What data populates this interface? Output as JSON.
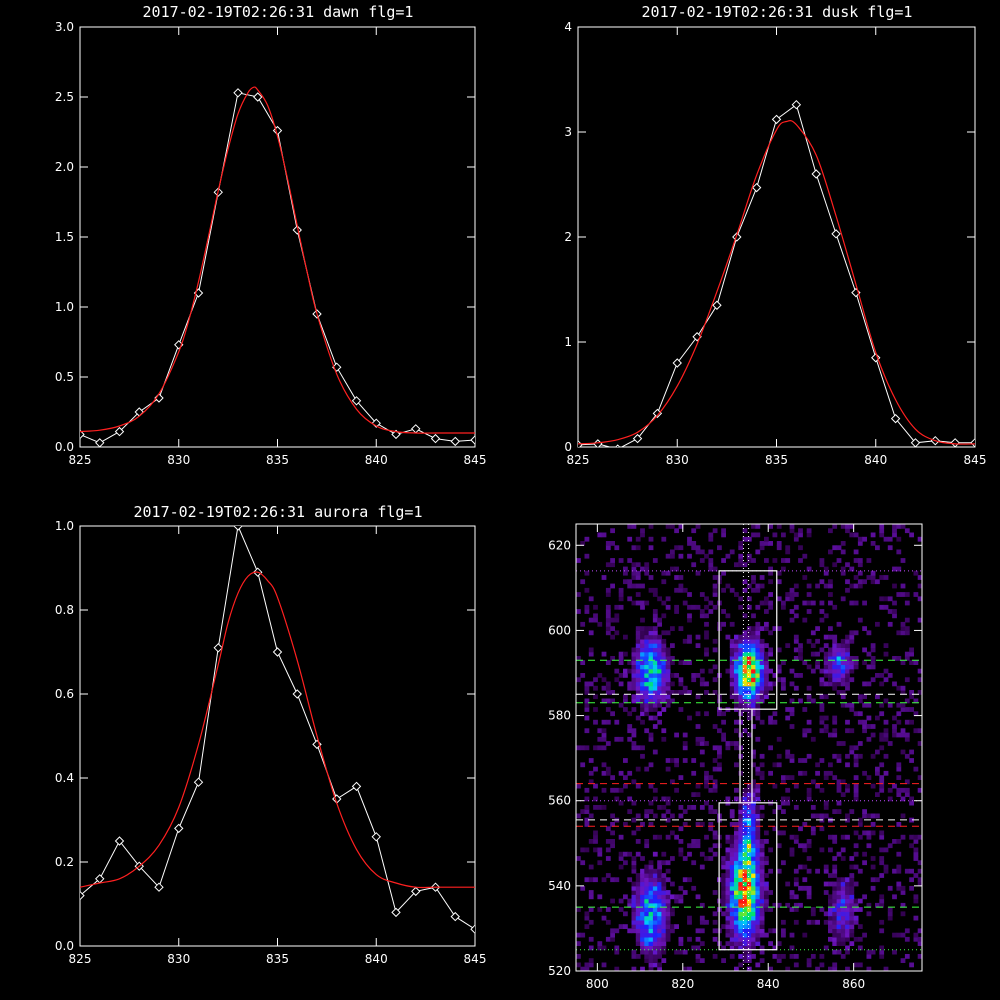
{
  "figure": {
    "background": "#000000",
    "axis_color": "#ffffff",
    "model_color": "#ff2020",
    "data_color": "#ffffff"
  },
  "chart_data": [
    {
      "type": "line",
      "title": "2017-02-19T02:26:31 dawn flg=1",
      "xlabel": "",
      "ylabel": "",
      "xlim": [
        825,
        845
      ],
      "ylim": [
        0,
        3.0
      ],
      "xticks": [
        "825",
        "830",
        "835",
        "840",
        "845"
      ],
      "yticks": [
        "0.0",
        "0.5",
        "1.0",
        "1.5",
        "2.0",
        "2.5",
        "3.0"
      ],
      "xtick_values": [
        825,
        830,
        835,
        840,
        845
      ],
      "ytick_values": [
        0,
        0.5,
        1.0,
        1.5,
        2.0,
        2.5,
        3.0
      ],
      "series": [
        {
          "role": "data",
          "marker": "diamond",
          "color": "#ffffff",
          "x": [
            825,
            826,
            827,
            828,
            829,
            830,
            831,
            832,
            833,
            834,
            835,
            836,
            837,
            838,
            839,
            840,
            841,
            842,
            843,
            844,
            845
          ],
          "y": [
            0.09,
            0.03,
            0.11,
            0.25,
            0.35,
            0.73,
            1.1,
            1.82,
            2.53,
            2.5,
            2.26,
            1.55,
            0.95,
            0.57,
            0.33,
            0.17,
            0.09,
            0.13,
            0.06,
            0.04,
            0.05
          ]
        },
        {
          "role": "fit",
          "color": "#ff2020",
          "x": [
            825,
            826,
            827,
            828,
            829,
            830,
            830.5,
            831,
            831.5,
            832,
            832.5,
            833,
            833.5,
            833.8,
            834,
            834.5,
            835,
            835.5,
            836,
            836.5,
            837,
            838,
            839,
            840,
            841,
            842,
            843,
            844,
            845
          ],
          "y": [
            0.11,
            0.12,
            0.15,
            0.22,
            0.38,
            0.68,
            0.9,
            1.18,
            1.5,
            1.83,
            2.13,
            2.38,
            2.53,
            2.57,
            2.55,
            2.44,
            2.22,
            1.92,
            1.58,
            1.25,
            0.95,
            0.52,
            0.27,
            0.15,
            0.11,
            0.1,
            0.1,
            0.1,
            0.1
          ]
        }
      ]
    },
    {
      "type": "line",
      "title": "2017-02-19T02:26:31 dusk flg=1",
      "xlabel": "",
      "ylabel": "",
      "xlim": [
        825,
        845
      ],
      "ylim": [
        0,
        4
      ],
      "xticks": [
        "825",
        "830",
        "835",
        "840",
        "845"
      ],
      "yticks": [
        "0",
        "1",
        "2",
        "3",
        "4"
      ],
      "xtick_values": [
        825,
        830,
        835,
        840,
        845
      ],
      "ytick_values": [
        0,
        1,
        2,
        3,
        4
      ],
      "series": [
        {
          "role": "data",
          "marker": "diamond",
          "color": "#ffffff",
          "x": [
            825,
            826,
            827,
            828,
            829,
            830,
            831,
            832,
            833,
            834,
            835,
            836,
            837,
            838,
            839,
            840,
            841,
            842,
            843,
            844,
            845
          ],
          "y": [
            0.02,
            0.03,
            -0.02,
            0.08,
            0.32,
            0.8,
            1.05,
            1.35,
            2.0,
            2.47,
            3.12,
            3.26,
            2.6,
            2.03,
            1.47,
            0.85,
            0.27,
            0.04,
            0.06,
            0.04,
            0.04
          ]
        },
        {
          "role": "fit",
          "color": "#ff2020",
          "x": [
            825,
            826,
            827,
            828,
            829,
            830,
            831,
            832,
            833,
            834,
            835,
            835.5,
            836,
            837,
            838,
            839,
            840,
            841,
            842,
            843,
            844,
            845
          ],
          "y": [
            0.03,
            0.04,
            0.07,
            0.14,
            0.3,
            0.58,
            0.98,
            1.48,
            2.02,
            2.59,
            3.02,
            3.1,
            3.07,
            2.78,
            2.2,
            1.55,
            0.9,
            0.45,
            0.17,
            0.06,
            0.03,
            0.03
          ]
        }
      ]
    },
    {
      "type": "line",
      "title": "2017-02-19T02:26:31 aurora flg=1",
      "xlabel": "",
      "ylabel": "",
      "xlim": [
        825,
        845
      ],
      "ylim": [
        0,
        1.0
      ],
      "xticks": [
        "825",
        "830",
        "835",
        "840",
        "845"
      ],
      "yticks": [
        "0.0",
        "0.2",
        "0.4",
        "0.6",
        "0.8",
        "1.0"
      ],
      "xtick_values": [
        825,
        830,
        835,
        840,
        845
      ],
      "ytick_values": [
        0,
        0.2,
        0.4,
        0.6,
        0.8,
        1.0
      ],
      "series": [
        {
          "role": "data",
          "marker": "diamond",
          "color": "#ffffff",
          "x": [
            825,
            826,
            827,
            828,
            829,
            830,
            831,
            832,
            833,
            834,
            835,
            836,
            837,
            838,
            839,
            840,
            841,
            842,
            843,
            844,
            845
          ],
          "y": [
            0.12,
            0.16,
            0.25,
            0.19,
            0.14,
            0.28,
            0.39,
            0.71,
            1.0,
            0.89,
            0.7,
            0.6,
            0.48,
            0.35,
            0.38,
            0.26,
            0.08,
            0.13,
            0.14,
            0.07,
            0.04
          ]
        },
        {
          "role": "fit",
          "color": "#ff2020",
          "x": [
            825,
            826,
            827,
            828,
            829,
            830,
            831,
            832,
            832.5,
            833,
            833.5,
            834,
            834.5,
            835,
            836,
            837,
            838,
            839,
            840,
            841,
            842,
            843,
            844,
            845
          ],
          "y": [
            0.14,
            0.15,
            0.16,
            0.19,
            0.24,
            0.33,
            0.48,
            0.67,
            0.77,
            0.84,
            0.88,
            0.89,
            0.87,
            0.83,
            0.68,
            0.5,
            0.34,
            0.23,
            0.17,
            0.15,
            0.14,
            0.14,
            0.14,
            0.14
          ]
        }
      ]
    },
    {
      "type": "heatmap",
      "title": "",
      "xlabel": "",
      "ylabel": "",
      "xlim": [
        795,
        876
      ],
      "ylim": [
        520,
        625
      ],
      "xticks": [
        "800",
        "820",
        "840",
        "860"
      ],
      "yticks": [
        "520",
        "540",
        "560",
        "580",
        "600",
        "620"
      ],
      "xtick_values": [
        800,
        820,
        840,
        860
      ],
      "ytick_values": [
        520,
        540,
        560,
        580,
        600,
        620
      ],
      "colormap": "rainbow (purple-blue-cyan-green-yellow-red)",
      "blobs": [
        {
          "x": 812,
          "y": 590,
          "sx": 2.5,
          "sy": 5,
          "peak": 0.62
        },
        {
          "x": 835,
          "y": 590,
          "sx": 2.2,
          "sy": 4.5,
          "peak": 1.0
        },
        {
          "x": 856,
          "y": 592,
          "sx": 2.0,
          "sy": 3.0,
          "peak": 0.4
        },
        {
          "x": 835,
          "y": 553,
          "sx": 1.4,
          "sy": 6,
          "peak": 0.42
        },
        {
          "x": 834,
          "y": 538,
          "sx": 2.4,
          "sy": 7,
          "peak": 0.95
        },
        {
          "x": 812,
          "y": 533,
          "sx": 2.5,
          "sy": 6,
          "peak": 0.55
        },
        {
          "x": 857,
          "y": 534,
          "sx": 2.0,
          "sy": 5,
          "peak": 0.3
        }
      ],
      "boxes": [
        {
          "x0": 828.5,
          "x1": 842,
          "y0": 581.5,
          "y1": 614,
          "color": "#ffffff"
        },
        {
          "x0": 828.5,
          "x1": 842,
          "y0": 525,
          "y1": 559.5,
          "color": "#ffffff"
        }
      ],
      "hlines": [
        {
          "y": 614,
          "color": "#c050ff",
          "style": "dotted"
        },
        {
          "y": 593,
          "color": "#40ff40",
          "style": "dashed"
        },
        {
          "y": 585,
          "color": "#ffffff",
          "style": "dashed"
        },
        {
          "y": 583,
          "color": "#40ff40",
          "style": "dashed"
        },
        {
          "y": 564,
          "color": "#ff2020",
          "style": "dashed"
        },
        {
          "y": 560,
          "color": "#c050ff",
          "style": "dotted"
        },
        {
          "y": 555.5,
          "color": "#ffffff",
          "style": "dashed"
        },
        {
          "y": 554,
          "color": "#ff2020",
          "style": "dashed"
        },
        {
          "y": 535,
          "color": "#40ff40",
          "style": "dashed"
        },
        {
          "y": 525,
          "color": "#40ff40",
          "style": "dotted"
        }
      ],
      "vlines": [
        {
          "x": 834.2,
          "color": "#ffffff",
          "style": "dotted"
        },
        {
          "x": 835.4,
          "color": "#ffffff",
          "style": "dotted"
        }
      ],
      "connector": {
        "x0": 833.4,
        "x1": 836.2,
        "y0": 559.5,
        "y1": 581.5,
        "color": "#ffffff"
      }
    }
  ]
}
